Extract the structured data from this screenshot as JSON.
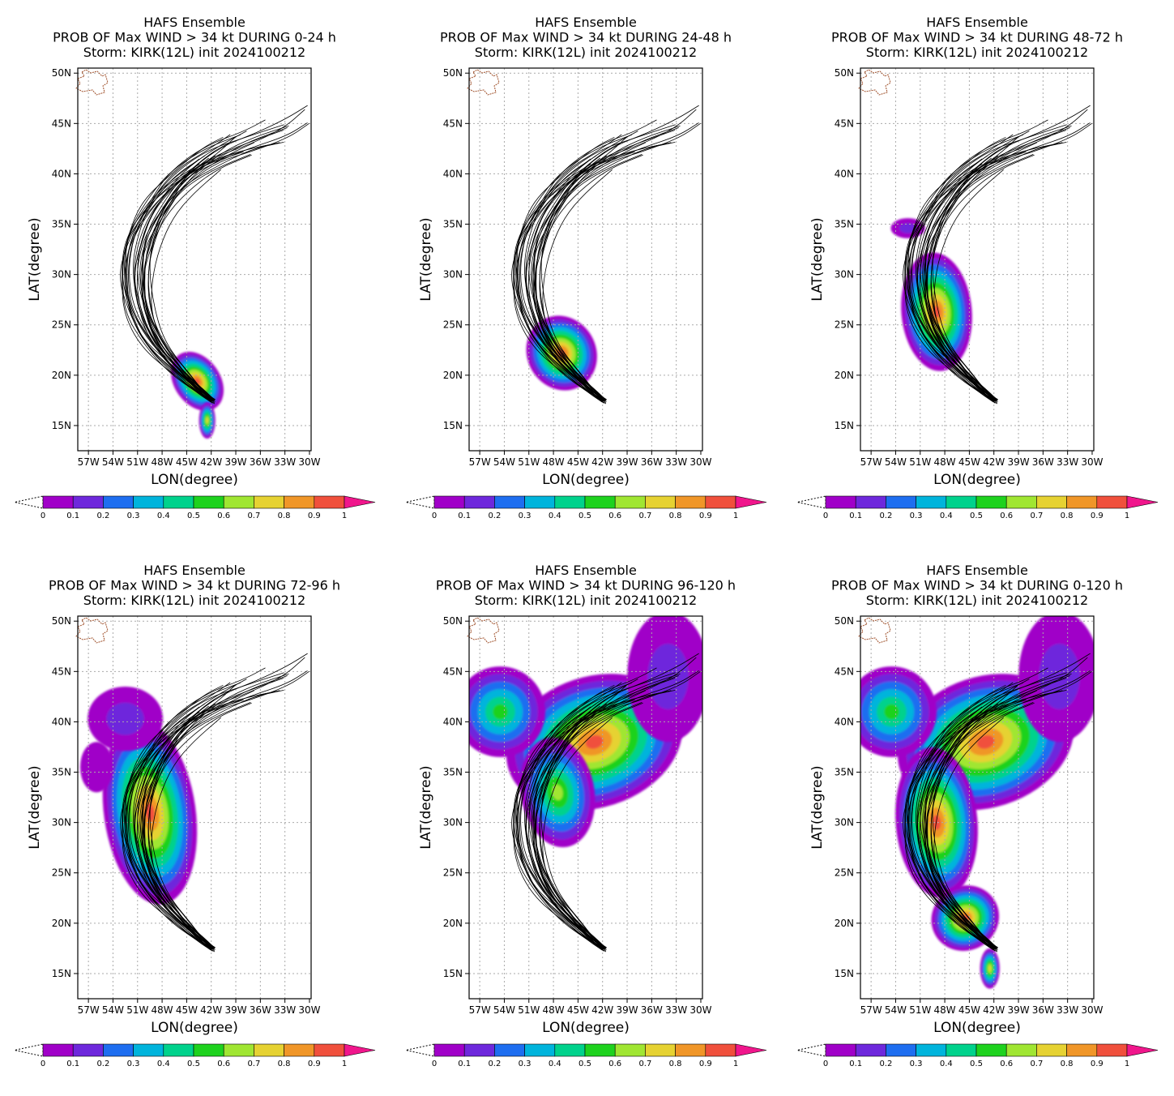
{
  "colors": {
    "scale": [
      "#a000c8",
      "#6e28dc",
      "#1e6ef0",
      "#00b4dc",
      "#00d28c",
      "#1ed21e",
      "#a0e632",
      "#e6d232",
      "#f09628",
      "#f0503c"
    ],
    "over": "#f0168c",
    "track": "#000000",
    "grid": "#aaaaaa",
    "coast": "#a0522d"
  },
  "colorbar": {
    "labels": [
      "0",
      "0.1",
      "0.2",
      "0.3",
      "0.4",
      "0.5",
      "0.6",
      "0.7",
      "0.8",
      "0.9",
      "1"
    ]
  },
  "axes": {
    "xlabel": "LON(degree)",
    "ylabel": "LAT(degree)",
    "xticks": [
      "57W",
      "54W",
      "51W",
      "48W",
      "45W",
      "42W",
      "39W",
      "36W",
      "33W",
      "30W"
    ],
    "yticks": [
      "15N",
      "20N",
      "25N",
      "30N",
      "35N",
      "40N",
      "45N",
      "50N"
    ],
    "xlim": [
      -58.3,
      -29.8
    ],
    "ylim": [
      12.5,
      50.5
    ]
  },
  "panels": [
    {
      "title1": "HAFS Ensemble",
      "title2": "PROB OF Max WIND > 34 kt DURING  0-24 h",
      "title3": "Storm: KIRK(12L) init 2024100212"
    },
    {
      "title1": "HAFS Ensemble",
      "title2": "PROB OF Max WIND > 34 kt DURING 24-48 h",
      "title3": "Storm: KIRK(12L) init 2024100212"
    },
    {
      "title1": "HAFS Ensemble",
      "title2": "PROB OF Max WIND > 34 kt DURING 48-72 h",
      "title3": "Storm: KIRK(12L) init 2024100212"
    },
    {
      "title1": "HAFS Ensemble",
      "title2": "PROB OF Max WIND > 34 kt DURING 72-96 h",
      "title3": "Storm: KIRK(12L) init 2024100212"
    },
    {
      "title1": "HAFS Ensemble",
      "title2": "PROB OF Max WIND > 34 kt DURING 96-120 h",
      "title3": "Storm: KIRK(12L) init 2024100212"
    },
    {
      "title1": "HAFS Ensemble",
      "title2": "PROB OF Max WIND > 34 kt DURING 0-120 h",
      "title3": "Storm: KIRK(12L) init 2024100212"
    }
  ],
  "chart_data": [
    {
      "type": "heatmap",
      "title": "PROB OF Max WIND > 34 kt DURING  0-24 h",
      "xlabel": "LON(degree)",
      "ylabel": "LAT(degree)",
      "xlim": [
        -58.3,
        -29.8
      ],
      "ylim": [
        12.5,
        50.5
      ],
      "clim": [
        0,
        1
      ],
      "blobs": [
        {
          "lon": -43.7,
          "lat": 19.4,
          "rlon": 2.8,
          "rlat": 3.2,
          "rot": -35,
          "max": 0.95
        },
        {
          "lon": -42.5,
          "lat": 15.5,
          "rlon": 1.0,
          "rlat": 1.8,
          "rot": 0,
          "max": 0.8
        }
      ]
    },
    {
      "type": "heatmap",
      "title": "PROB OF Max WIND > 34 kt DURING 24-48 h",
      "xlabel": "LON(degree)",
      "ylabel": "LAT(degree)",
      "xlim": [
        -58.3,
        -29.8
      ],
      "ylim": [
        12.5,
        50.5
      ],
      "clim": [
        0,
        1
      ],
      "blobs": [
        {
          "lon": -47.0,
          "lat": 22.2,
          "rlon": 4.2,
          "rlat": 3.8,
          "rot": -30,
          "max": 0.95
        }
      ]
    },
    {
      "type": "heatmap",
      "title": "PROB OF Max WIND > 34 kt DURING 48-72 h",
      "xlabel": "LON(degree)",
      "ylabel": "LAT(degree)",
      "xlim": [
        -58.3,
        -29.8
      ],
      "ylim": [
        12.5,
        50.5
      ],
      "clim": [
        0,
        1
      ],
      "blobs": [
        {
          "lon": -49.0,
          "lat": 26.3,
          "rlon": 4.3,
          "rlat": 5.9,
          "rot": -5,
          "max": 0.95
        },
        {
          "lon": -52.5,
          "lat": 34.6,
          "rlon": 2.1,
          "rlat": 1.0,
          "rot": 0,
          "max": 0.15
        }
      ]
    },
    {
      "type": "heatmap",
      "title": "PROB OF Max WIND > 34 kt DURING 72-96 h",
      "xlabel": "LON(degree)",
      "ylabel": "LAT(degree)",
      "xlim": [
        -58.3,
        -29.8
      ],
      "ylim": [
        12.5,
        50.5
      ],
      "clim": [
        0,
        1
      ],
      "blobs": [
        {
          "lon": -49.5,
          "lat": 31.0,
          "rlon": 5.6,
          "rlat": 9.2,
          "rot": -8,
          "max": 0.95
        },
        {
          "lon": -52.5,
          "lat": 40.3,
          "rlon": 4.6,
          "rlat": 3.2,
          "rot": 0,
          "max": 0.15
        },
        {
          "lon": -56.0,
          "lat": 35.5,
          "rlon": 2.0,
          "rlat": 2.5,
          "rot": 0,
          "max": 0.1
        }
      ]
    },
    {
      "type": "heatmap",
      "title": "PROB OF Max WIND > 34 kt DURING 96-120 h",
      "xlabel": "LON(degree)",
      "ylabel": "LAT(degree)",
      "xlim": [
        -58.3,
        -29.8
      ],
      "ylim": [
        12.5,
        50.5
      ],
      "clim": [
        0,
        1
      ],
      "blobs": [
        {
          "lon": -43.0,
          "lat": 38.0,
          "rlon": 11.0,
          "rlat": 6.5,
          "rot": -18,
          "max": 0.95
        },
        {
          "lon": -47.5,
          "lat": 33.0,
          "rlon": 4.5,
          "rlat": 5.5,
          "rot": -10,
          "max": 0.7
        },
        {
          "lon": -54.5,
          "lat": 41.0,
          "rlon": 5.5,
          "rlat": 4.5,
          "rot": 0,
          "max": 0.6
        },
        {
          "lon": -34.0,
          "lat": 44.5,
          "rlon": 5.0,
          "rlat": 6.5,
          "rot": 0,
          "max": 0.15
        }
      ]
    },
    {
      "type": "heatmap",
      "title": "PROB OF Max WIND > 34 kt DURING 0-120 h",
      "xlabel": "LON(degree)",
      "ylabel": "LAT(degree)",
      "xlim": [
        -58.3,
        -29.8
      ],
      "ylim": [
        12.5,
        50.5
      ],
      "clim": [
        0,
        1
      ],
      "blobs": [
        {
          "lon": -43.0,
          "lat": 38.0,
          "rlon": 11.0,
          "rlat": 6.5,
          "rot": -18,
          "max": 0.95
        },
        {
          "lon": -49.0,
          "lat": 30.0,
          "rlon": 5.0,
          "rlat": 7.5,
          "rot": -5,
          "max": 0.95
        },
        {
          "lon": -45.5,
          "lat": 20.5,
          "rlon": 4.2,
          "rlat": 3.2,
          "rot": -30,
          "max": 0.95
        },
        {
          "lon": -42.5,
          "lat": 15.5,
          "rlon": 1.2,
          "rlat": 2.0,
          "rot": 0,
          "max": 0.8
        },
        {
          "lon": -54.5,
          "lat": 41.0,
          "rlon": 5.5,
          "rlat": 4.5,
          "rot": 0,
          "max": 0.6
        },
        {
          "lon": -34.0,
          "lat": 44.5,
          "rlon": 5.0,
          "rlat": 6.5,
          "rot": 0,
          "max": 0.15
        }
      ]
    }
  ]
}
